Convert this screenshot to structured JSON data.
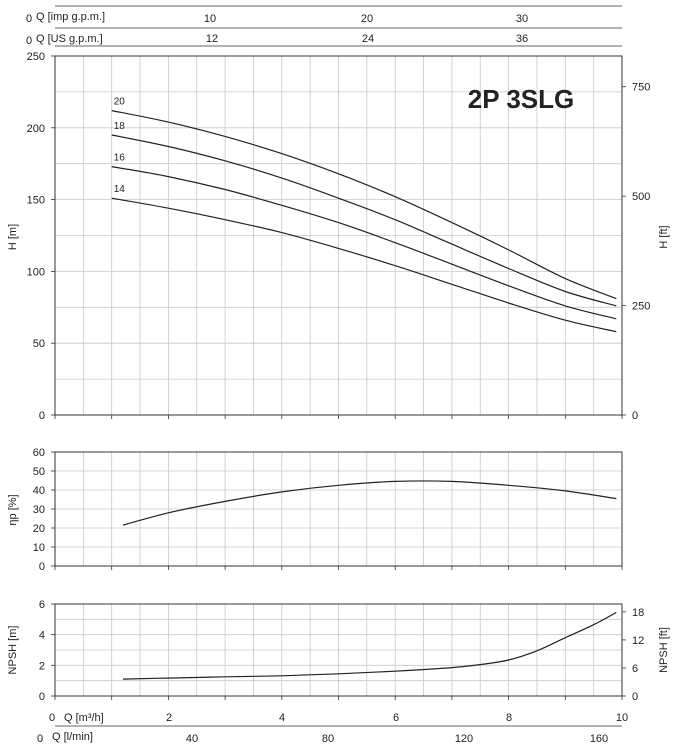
{
  "chart_data": [
    {
      "type": "line",
      "id": "head",
      "title": "2P 3SLG",
      "ylabel": "H [m]",
      "ylabel_right": "H [ft]",
      "ylim": [
        0,
        250
      ],
      "xlim": [
        0,
        10
      ],
      "yticks": [
        "0",
        "50",
        "100",
        "150",
        "200",
        "250"
      ],
      "yticks_right": [
        "0",
        "250",
        "500",
        "750"
      ],
      "grid": true,
      "series": [
        {
          "name": "20",
          "x": [
            1,
            2,
            3,
            4,
            5,
            6,
            7,
            8,
            9,
            9.9
          ],
          "y": [
            212,
            204,
            194,
            182,
            168,
            152,
            134,
            115,
            95,
            81
          ]
        },
        {
          "name": "18",
          "x": [
            1,
            2,
            3,
            4,
            5,
            6,
            7,
            8,
            9,
            9.9
          ],
          "y": [
            195,
            187,
            177,
            165,
            151,
            136,
            119,
            102,
            86,
            76
          ]
        },
        {
          "name": "16",
          "x": [
            1,
            2,
            3,
            4,
            5,
            6,
            7,
            8,
            9,
            9.9
          ],
          "y": [
            173,
            166,
            157,
            146,
            134,
            120,
            105,
            90,
            76,
            67
          ]
        },
        {
          "name": "14",
          "x": [
            1,
            2,
            3,
            4,
            5,
            6,
            7,
            8,
            9,
            9.9
          ],
          "y": [
            151,
            144,
            136,
            127,
            116,
            104,
            91,
            78,
            66,
            58
          ]
        }
      ]
    },
    {
      "type": "line",
      "id": "efficiency",
      "ylabel": "ηp [%]",
      "ylim": [
        0,
        60
      ],
      "xlim": [
        0,
        10
      ],
      "yticks": [
        "0",
        "10",
        "20",
        "30",
        "40",
        "50",
        "60"
      ],
      "grid": true,
      "series": [
        {
          "x": [
            1.2,
            2,
            3,
            4,
            5,
            6,
            7,
            8,
            9,
            9.9
          ],
          "y": [
            21.5,
            28,
            34,
            39,
            42.5,
            44.5,
            44.5,
            42.5,
            39.5,
            35.5
          ]
        }
      ]
    },
    {
      "type": "line",
      "id": "npsh",
      "ylabel": "NPSH [m]",
      "ylabel_right": "NPSH [ft]",
      "ylim": [
        0,
        6
      ],
      "xlim": [
        0,
        10
      ],
      "yticks": [
        "0",
        "2",
        "4",
        "6"
      ],
      "yticks_right": [
        "0",
        "6",
        "12",
        "18"
      ],
      "grid": true,
      "series": [
        {
          "x": [
            1.2,
            2,
            3,
            4,
            5,
            6,
            7,
            7.5,
            8,
            8.5,
            9,
            9.5,
            9.9
          ],
          "y": [
            1.1,
            1.17,
            1.25,
            1.32,
            1.45,
            1.62,
            1.85,
            2.05,
            2.35,
            2.95,
            3.8,
            4.65,
            5.45
          ]
        }
      ]
    }
  ],
  "axes": {
    "q_imp": {
      "label": "Q [imp g.p.m.]",
      "zero": "0",
      "ticks": [
        "10",
        "20",
        "30"
      ]
    },
    "q_us": {
      "label": "Q [US g.p.m.]",
      "zero": "0",
      "ticks": [
        "12",
        "24",
        "36"
      ]
    },
    "q_m3h": {
      "label": "Q [m³/h]",
      "zero": "0",
      "ticks": [
        "2",
        "4",
        "6",
        "8",
        "10"
      ]
    },
    "q_lmin": {
      "label": "Q [l/min]",
      "zero": "0",
      "ticks": [
        "40",
        "80",
        "120",
        "160"
      ]
    }
  }
}
